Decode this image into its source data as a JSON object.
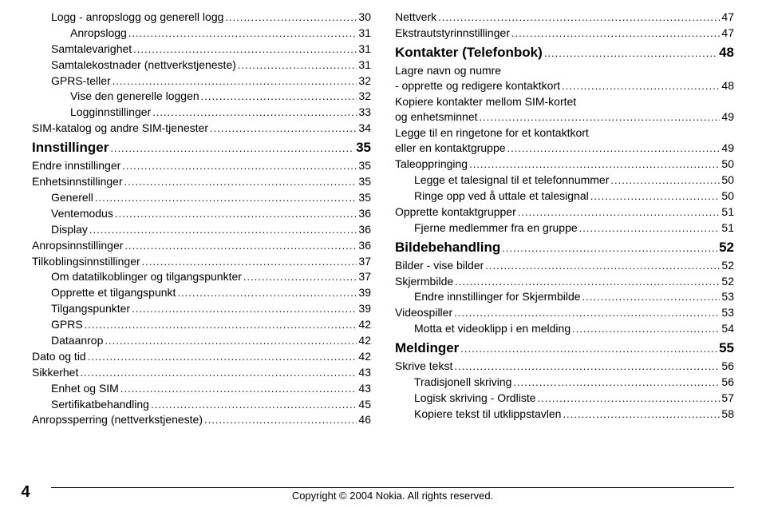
{
  "page_number": "4",
  "footer": "Copyright © 2004 Nokia. All rights reserved.",
  "dots": "..............................................................................................................................",
  "left": [
    {
      "label": "Logg - anropslogg og generell logg",
      "page": "30",
      "indent": 1
    },
    {
      "label": "Anropslogg",
      "page": "31",
      "indent": 2
    },
    {
      "label": "Samtalevarighet",
      "page": "31",
      "indent": 1
    },
    {
      "label": "Samtalekostnader (nettverkstjeneste)",
      "page": "31",
      "indent": 1
    },
    {
      "label": "GPRS-teller",
      "page": "32",
      "indent": 1
    },
    {
      "label": "Vise den generelle loggen",
      "page": "32",
      "indent": 2
    },
    {
      "label": "Logginnstillinger",
      "page": "33",
      "indent": 2
    },
    {
      "label": "SIM-katalog og andre SIM-tjenester",
      "page": "34",
      "indent": 0
    },
    {
      "label": "Innstillinger",
      "page": "35",
      "indent": 0,
      "heading": true
    },
    {
      "label": "Endre innstillinger",
      "page": "35",
      "indent": 0
    },
    {
      "label": "Enhetsinnstillinger",
      "page": "35",
      "indent": 0
    },
    {
      "label": "Generell",
      "page": "35",
      "indent": 1
    },
    {
      "label": "Ventemodus",
      "page": "36",
      "indent": 1
    },
    {
      "label": "Display",
      "page": "36",
      "indent": 1
    },
    {
      "label": "Anropsinnstillinger",
      "page": "36",
      "indent": 0
    },
    {
      "label": "Tilkoblingsinnstillinger",
      "page": "37",
      "indent": 0
    },
    {
      "label": "Om datatilkoblinger og tilgangspunkter",
      "page": "37",
      "indent": 1
    },
    {
      "label": "Opprette et tilgangspunkt",
      "page": "39",
      "indent": 1
    },
    {
      "label": "Tilgangspunkter",
      "page": "39",
      "indent": 1
    },
    {
      "label": "GPRS",
      "page": "42",
      "indent": 1
    },
    {
      "label": "Dataanrop",
      "page": "42",
      "indent": 1
    },
    {
      "label": "Dato og tid",
      "page": "42",
      "indent": 0
    },
    {
      "label": "Sikkerhet",
      "page": "43",
      "indent": 0
    },
    {
      "label": "Enhet og SIM",
      "page": "43",
      "indent": 1
    },
    {
      "label": "Sertifikatbehandling",
      "page": "45",
      "indent": 1
    },
    {
      "label": "Anropssperring (nettverkstjeneste)",
      "page": "46",
      "indent": 0
    }
  ],
  "right": [
    {
      "label": "Nettverk",
      "page": "47",
      "indent": 0
    },
    {
      "label": "Ekstrautstyrinnstillinger",
      "page": "47",
      "indent": 0
    },
    {
      "label": "Kontakter (Telefonbok)",
      "page": "48",
      "indent": 0,
      "heading": true
    },
    {
      "label": "Lagre navn og numre",
      "indent": 0,
      "noline": true
    },
    {
      "label": "- opprette og redigere kontaktkort",
      "page": "48",
      "indent": 0
    },
    {
      "label": "Kopiere kontakter mellom SIM-kortet",
      "indent": 0,
      "noline": true
    },
    {
      "label": "og enhetsminnet",
      "page": "49",
      "indent": 0
    },
    {
      "label": "Legge til en ringetone for et kontaktkort",
      "indent": 0,
      "noline": true
    },
    {
      "label": "eller en kontaktgruppe",
      "page": "49",
      "indent": 0
    },
    {
      "label": "Taleoppringing",
      "page": "50",
      "indent": 0
    },
    {
      "label": "Legge et talesignal til et telefonnummer",
      "page": "50",
      "indent": 1
    },
    {
      "label": "Ringe opp ved å uttale et talesignal",
      "page": "50",
      "indent": 1
    },
    {
      "label": "Opprette kontaktgrupper",
      "page": "51",
      "indent": 0
    },
    {
      "label": "Fjerne medlemmer fra en gruppe",
      "page": "51",
      "indent": 1
    },
    {
      "label": "Bildebehandling",
      "page": "52",
      "indent": 0,
      "heading": true
    },
    {
      "label": "Bilder - vise bilder",
      "page": "52",
      "indent": 0
    },
    {
      "label": "Skjermbilde",
      "page": "52",
      "indent": 0
    },
    {
      "label": "Endre innstillinger for Skjermbilde",
      "page": "53",
      "indent": 1
    },
    {
      "label": "Videospiller",
      "page": "53",
      "indent": 0
    },
    {
      "label": "Motta et videoklipp i en melding",
      "page": "54",
      "indent": 1
    },
    {
      "label": "Meldinger",
      "page": "55",
      "indent": 0,
      "heading": true
    },
    {
      "label": "Skrive tekst",
      "page": "56",
      "indent": 0
    },
    {
      "label": "Tradisjonell skriving",
      "page": "56",
      "indent": 1
    },
    {
      "label": "Logisk skriving - Ordliste",
      "page": "57",
      "indent": 1
    },
    {
      "label": "Kopiere tekst til utklippstavlen",
      "page": "58",
      "indent": 1
    }
  ]
}
